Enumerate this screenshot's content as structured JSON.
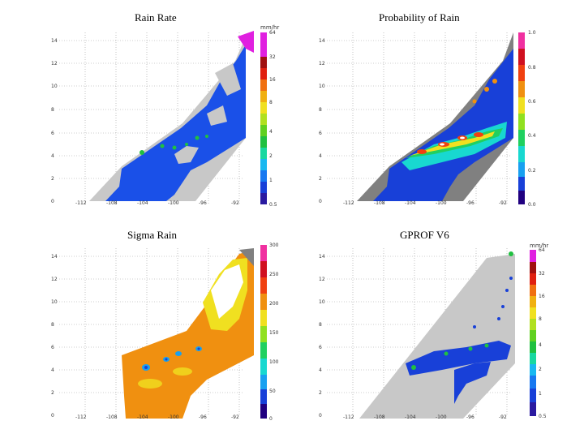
{
  "panels": [
    {
      "title": "Rain Rate",
      "units": "mm/hr",
      "y_ticks": [
        "14",
        "12",
        "10",
        "8",
        "6",
        "4",
        "2",
        "0"
      ],
      "x_ticks": [
        "-112",
        "-108",
        "-104",
        "-100",
        "-96",
        "-92"
      ],
      "colorbar_labels": [
        "64",
        "32",
        "16",
        "8",
        "4",
        "2",
        "1",
        "0.5"
      ],
      "colors": [
        "#2a1aa0",
        "#1840d8",
        "#1878f0",
        "#18b8f0",
        "#18d8a0",
        "#20c040",
        "#60d020",
        "#b0e020",
        "#f0e020",
        "#f0b010",
        "#f07010",
        "#e02010",
        "#a01010",
        "#e020e0"
      ]
    },
    {
      "title": "Probability of Rain",
      "units": "",
      "y_ticks": [
        "14",
        "12",
        "10",
        "8",
        "6",
        "4",
        "2",
        "0"
      ],
      "x_ticks": [
        "-112",
        "-108",
        "-104",
        "-100",
        "-96",
        "-92"
      ],
      "colorbar_labels": [
        "1.0",
        "0.8",
        "0.6",
        "0.4",
        "0.2",
        "0.0"
      ],
      "colors": [
        "#200080",
        "#1840d8",
        "#18a0f0",
        "#18d8d0",
        "#20d060",
        "#90e020",
        "#f0e020",
        "#f09010",
        "#f04010",
        "#d01020",
        "#f030a0"
      ]
    },
    {
      "title": "Sigma Rain",
      "units": "",
      "y_ticks": [
        "14",
        "12",
        "10",
        "8",
        "6",
        "4",
        "2",
        "0"
      ],
      "x_ticks": [
        "-112",
        "-108",
        "-104",
        "-100",
        "-96",
        "-92"
      ],
      "colorbar_labels": [
        "300",
        "250",
        "200",
        "150",
        "100",
        "50",
        "0"
      ],
      "colors": [
        "#200080",
        "#1840d8",
        "#18a0f0",
        "#18d8d0",
        "#20d060",
        "#90e020",
        "#f0e020",
        "#f09010",
        "#f04010",
        "#d01020",
        "#f030a0"
      ]
    },
    {
      "title": "GPROF V6",
      "units": "mm/hr",
      "y_ticks": [
        "14",
        "12",
        "10",
        "8",
        "6",
        "4",
        "2",
        "0"
      ],
      "x_ticks": [
        "-112",
        "-108",
        "-104",
        "-100",
        "-96",
        "-92"
      ],
      "colorbar_labels": [
        "64",
        "32",
        "16",
        "8",
        "4",
        "2",
        "1",
        "0.5"
      ],
      "colors": [
        "#2a1aa0",
        "#1840d8",
        "#1878f0",
        "#18b8f0",
        "#18d8a0",
        "#20c040",
        "#60d020",
        "#b0e020",
        "#f0e020",
        "#f0b010",
        "#f07010",
        "#e02010",
        "#a01010",
        "#e020e0"
      ]
    }
  ]
}
